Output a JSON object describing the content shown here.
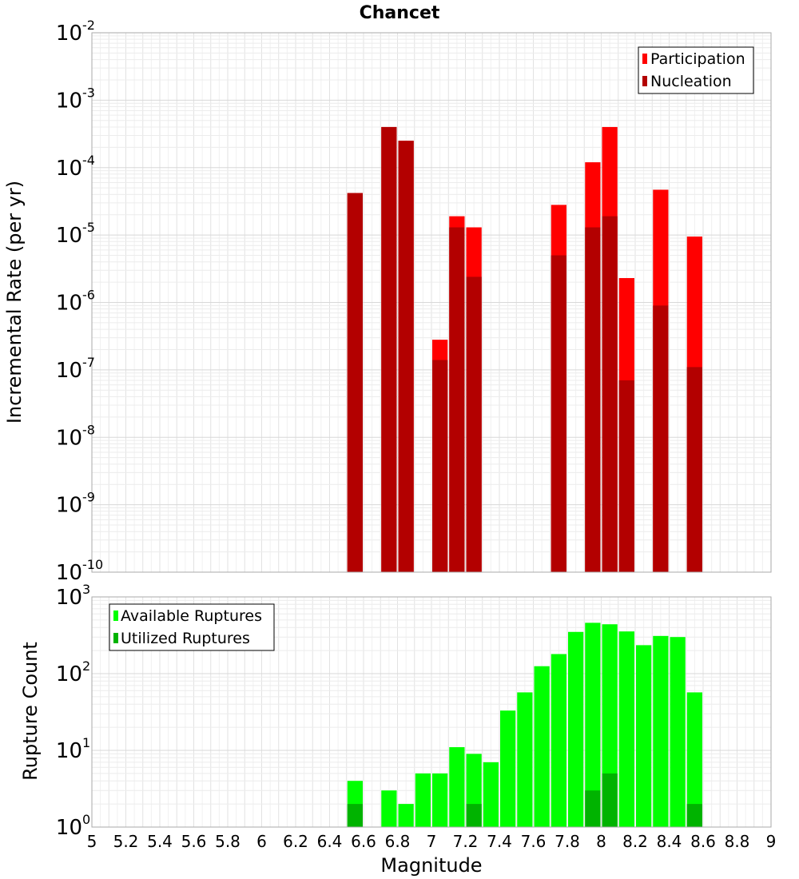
{
  "chart_data": [
    {
      "type": "bar",
      "title": "Chancet",
      "ylabel": "Incremental Rate (per yr)",
      "yscale": "log",
      "ylim_exponents": [
        -10,
        -2
      ],
      "xlim": [
        5,
        9
      ],
      "grid": true,
      "legend_position": "top-right",
      "colors": {
        "participation": "#ff0000",
        "nucleation": "#b30000"
      },
      "series": [
        {
          "name": "Participation",
          "x": [
            6.55,
            6.75,
            6.85,
            7.05,
            7.15,
            7.25,
            7.75,
            7.95,
            8.05,
            8.15,
            8.35,
            8.55
          ],
          "values": [
            4.2e-05,
            0.0004,
            0.00025,
            2.8e-07,
            1.9e-05,
            1.3e-05,
            2.8e-05,
            0.00012,
            0.0004,
            2.3e-06,
            4.7e-05,
            9.5e-06
          ]
        },
        {
          "name": "Nucleation",
          "x": [
            6.55,
            6.75,
            6.85,
            7.05,
            7.15,
            7.25,
            7.75,
            7.95,
            8.05,
            8.15,
            8.35,
            8.55
          ],
          "values": [
            4.2e-05,
            0.0004,
            0.00025,
            1.4e-07,
            1.3e-05,
            2.4e-06,
            5e-06,
            1.3e-05,
            1.9e-05,
            7e-08,
            9e-07,
            1.1e-07
          ]
        }
      ]
    },
    {
      "type": "bar",
      "xlabel": "Magnitude",
      "ylabel": "Rupture Count",
      "yscale": "log",
      "ylim_exponents": [
        0,
        3
      ],
      "xlim": [
        5,
        9
      ],
      "x_ticks": [
        "5",
        "5.2",
        "5.4",
        "5.6",
        "5.8",
        "6",
        "6.2",
        "6.4",
        "6.6",
        "6.8",
        "7",
        "7.2",
        "7.4",
        "7.6",
        "7.8",
        "8",
        "8.2",
        "8.4",
        "8.6",
        "8.8",
        "9"
      ],
      "grid": true,
      "legend_position": "top-left",
      "colors": {
        "available": "#00ff00",
        "utilized": "#00b300"
      },
      "series": [
        {
          "name": "Available Ruptures",
          "x": [
            6.55,
            6.75,
            6.85,
            6.95,
            7.05,
            7.15,
            7.25,
            7.35,
            7.45,
            7.55,
            7.65,
            7.75,
            7.85,
            7.95,
            8.05,
            8.15,
            8.25,
            8.35,
            8.45,
            8.55
          ],
          "values": [
            4,
            3,
            2,
            5,
            5,
            11,
            9,
            7,
            33,
            57,
            125,
            180,
            350,
            460,
            440,
            355,
            235,
            310,
            300,
            57
          ]
        },
        {
          "name": "Utilized Ruptures",
          "x": [
            6.55,
            6.75,
            6.85,
            7.05,
            7.15,
            7.25,
            7.75,
            7.95,
            8.05,
            8.15,
            8.35,
            8.55
          ],
          "values": [
            2,
            1,
            1,
            1,
            1,
            2,
            1,
            3,
            5,
            1,
            1,
            2
          ]
        }
      ]
    }
  ]
}
